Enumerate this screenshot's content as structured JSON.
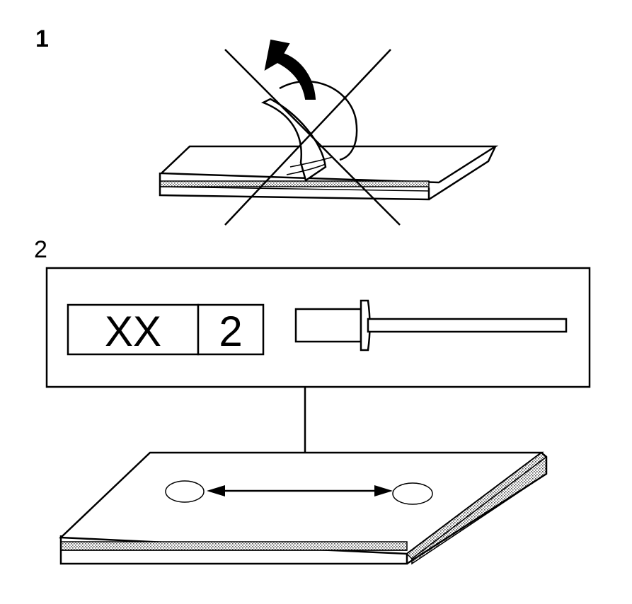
{
  "steps": [
    {
      "number": "1"
    },
    {
      "number": "2"
    }
  ],
  "label": {
    "code": "XX",
    "grip": "2"
  }
}
